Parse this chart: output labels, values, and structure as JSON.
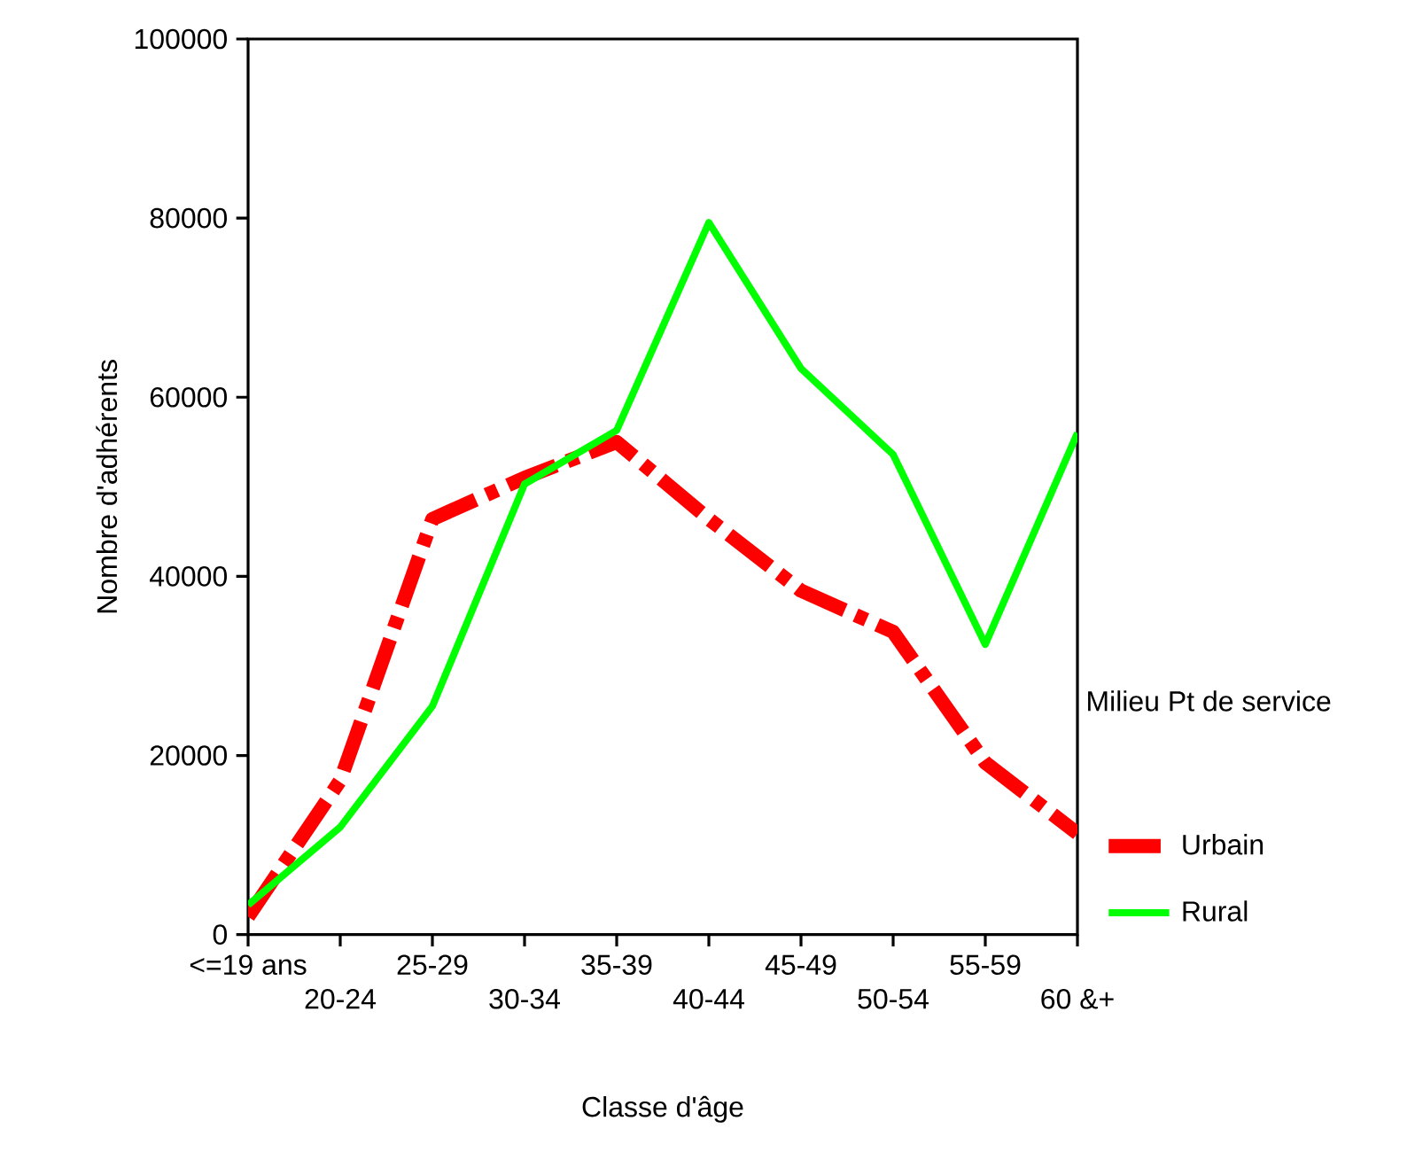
{
  "chart_data": {
    "type": "line",
    "xlabel": "Classe d'âge",
    "ylabel": "Nombre d'adhérents",
    "legend_title": "Milieu Pt de service",
    "legend": "right",
    "categories": [
      "<=19 ans",
      "20-24",
      "25-29",
      "30-34",
      "35-39",
      "40-44",
      "45-49",
      "50-54",
      "55-59",
      "60 &+"
    ],
    "ylim": [
      0,
      100000
    ],
    "yticks": [
      0,
      20000,
      40000,
      60000,
      80000,
      100000
    ],
    "grid": false,
    "series": [
      {
        "name": "Urbain",
        "color": "#ff0000",
        "line_style": "dashed",
        "values": [
          2000,
          17200,
          46400,
          51000,
          55000,
          46400,
          38400,
          33800,
          19200,
          11300
        ]
      },
      {
        "name": "Rural",
        "color": "#00ff00",
        "line_style": "solid",
        "values": [
          3300,
          12000,
          25500,
          50300,
          56300,
          79500,
          63200,
          53600,
          32400,
          56000
        ]
      }
    ]
  }
}
